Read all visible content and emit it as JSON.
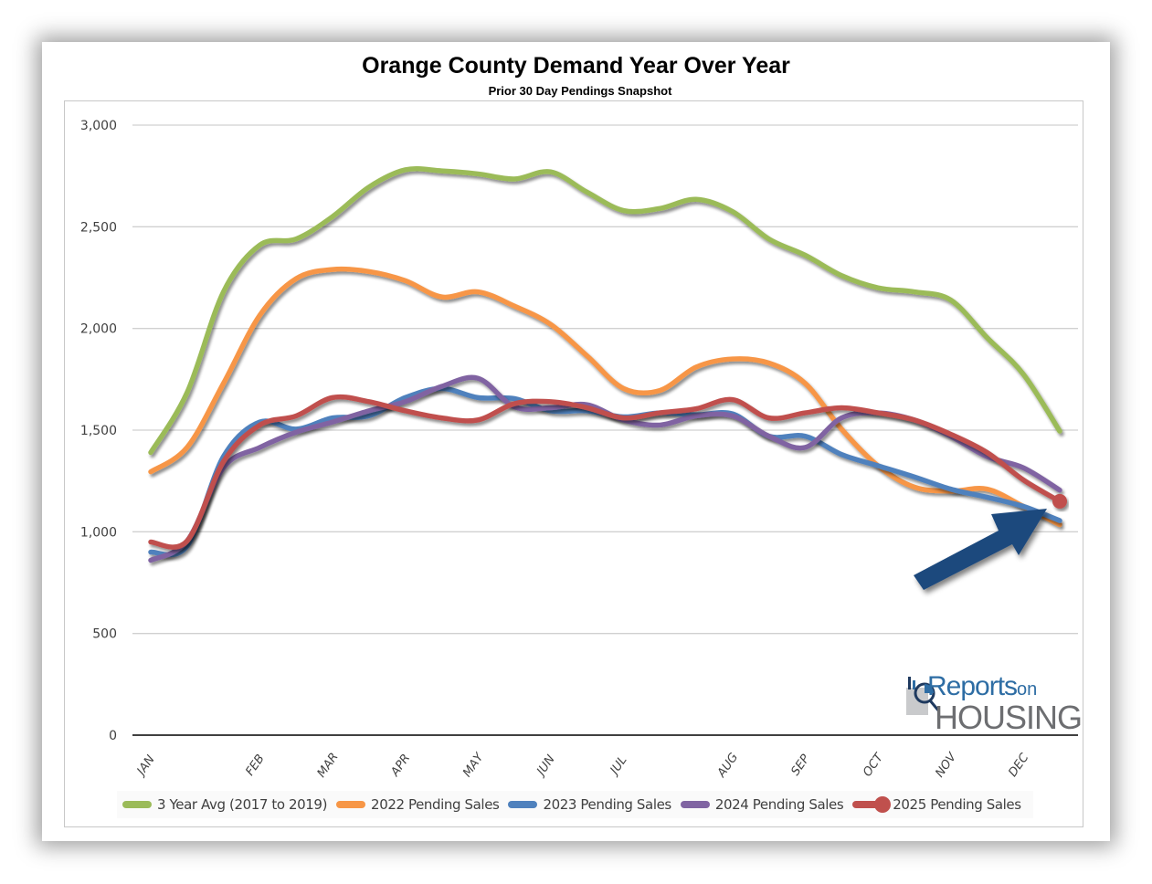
{
  "chart_data": {
    "type": "line",
    "title": "Orange County Demand Year Over Year",
    "subtitle": "Prior 30 Day Pendings Snapshot",
    "xlabel": "",
    "ylabel": "",
    "ylim": [
      0,
      3000
    ],
    "yticks": [
      0,
      500,
      1000,
      1500,
      2000,
      2500,
      3000
    ],
    "ytick_labels": [
      "0",
      "500",
      "1,000",
      "1,500",
      "2,000",
      "2,500",
      "3,000"
    ],
    "grid": true,
    "legend_position": "bottom",
    "point_count": 26,
    "x_tick_labels": [
      {
        "label": "JAN",
        "index": 0
      },
      {
        "label": "FEB",
        "index": 3
      },
      {
        "label": "MAR",
        "index": 5
      },
      {
        "label": "APR",
        "index": 7
      },
      {
        "label": "MAY",
        "index": 9
      },
      {
        "label": "JUN",
        "index": 11
      },
      {
        "label": "JUL",
        "index": 13
      },
      {
        "label": "AUG",
        "index": 16
      },
      {
        "label": "SEP",
        "index": 18
      },
      {
        "label": "OCT",
        "index": 20
      },
      {
        "label": "NOV",
        "index": 22
      },
      {
        "label": "DEC",
        "index": 24
      }
    ],
    "series": [
      {
        "name": "3 Year Avg (2017 to 2019)",
        "color": "#9BBB59",
        "values": [
          1390,
          1685,
          2180,
          2410,
          2440,
          2550,
          2695,
          2780,
          2775,
          2760,
          2735,
          2770,
          2670,
          2580,
          2590,
          2635,
          2575,
          2440,
          2360,
          2260,
          2200,
          2180,
          2140,
          1955,
          1775,
          1495
        ]
      },
      {
        "name": "2022 Pending Sales",
        "color": "#F79646",
        "values": [
          1295,
          1415,
          1730,
          2065,
          2245,
          2290,
          2280,
          2235,
          2155,
          2180,
          2110,
          2020,
          1865,
          1705,
          1695,
          1810,
          1850,
          1830,
          1730,
          1505,
          1325,
          1220,
          1200,
          1210,
          1125,
          1035
        ]
      },
      {
        "name": "2023 Pending Sales",
        "color": "#4F81BD",
        "values": [
          900,
          930,
          1370,
          1540,
          1505,
          1560,
          1570,
          1660,
          1705,
          1660,
          1655,
          1595,
          1595,
          1565,
          1585,
          1575,
          1580,
          1470,
          1470,
          1380,
          1325,
          1270,
          1210,
          1170,
          1125,
          1055
        ]
      },
      {
        "name": "2024 Pending Sales",
        "color": "#8064A2",
        "values": [
          860,
          955,
          1315,
          1415,
          1490,
          1540,
          1595,
          1640,
          1715,
          1755,
          1615,
          1610,
          1625,
          1550,
          1525,
          1570,
          1570,
          1470,
          1415,
          1560,
          1585,
          1550,
          1470,
          1370,
          1315,
          1205
        ]
      },
      {
        "name": "2025 Pending Sales",
        "color": "#C0504D",
        "marker_last": true,
        "values": [
          950,
          955,
          1345,
          1525,
          1570,
          1660,
          1640,
          1595,
          1560,
          1550,
          1630,
          1640,
          1610,
          1560,
          1585,
          1605,
          1650,
          1560,
          1585,
          1610,
          1585,
          1550,
          1480,
          1390,
          1255,
          1150
        ]
      }
    ],
    "annotations": [
      {
        "type": "arrow",
        "color": "#1F497D",
        "points_to": "2025 Pending Sales latest value"
      }
    ]
  },
  "logo": {
    "line1": "Reports",
    "line1_suffix": "on",
    "line2": "HOUSING"
  }
}
